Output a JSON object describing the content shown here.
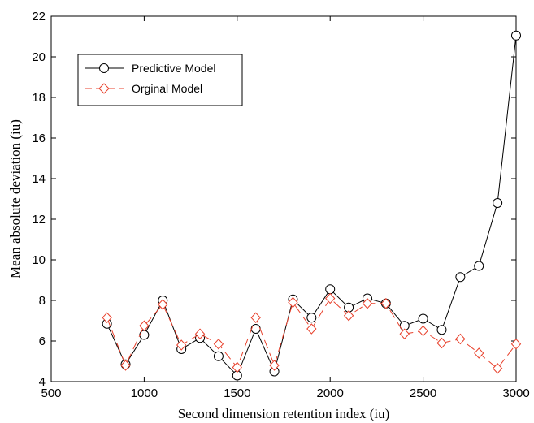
{
  "chart_data": {
    "type": "line",
    "title": "",
    "xlabel": "Second dimension retention index (iu)",
    "ylabel": "Mean absolute deviation (iu)",
    "xlim": [
      500,
      3000
    ],
    "ylim": [
      4,
      22
    ],
    "xticks": [
      500,
      1000,
      1500,
      2000,
      2500,
      3000
    ],
    "yticks": [
      4,
      6,
      8,
      10,
      12,
      14,
      16,
      18,
      20,
      22
    ],
    "grid": false,
    "legend_position": "top-left",
    "series": [
      {
        "name": "Predictive Model",
        "color": "#000000",
        "marker": "circle",
        "line_style": "solid",
        "x": [
          800,
          900,
          1000,
          1100,
          1200,
          1300,
          1400,
          1500,
          1600,
          1700,
          1800,
          1900,
          2000,
          2100,
          2200,
          2300,
          2400,
          2500,
          2600,
          2700,
          2800,
          2900,
          3000
        ],
        "y": [
          6.85,
          4.85,
          6.3,
          8.0,
          5.6,
          6.15,
          5.25,
          4.3,
          6.6,
          4.5,
          8.05,
          7.15,
          8.55,
          7.65,
          8.1,
          7.85,
          6.75,
          7.1,
          6.55,
          9.15,
          9.7,
          12.8,
          21.05
        ]
      },
      {
        "name": "Orginal Model",
        "color": "#e8412c",
        "marker": "diamond",
        "line_style": "dashed",
        "x": [
          800,
          900,
          1000,
          1100,
          1200,
          1300,
          1400,
          1500,
          1600,
          1700,
          1800,
          1900,
          2000,
          2100,
          2200,
          2300,
          2400,
          2500,
          2600,
          2700,
          2800,
          2900,
          3000
        ],
        "y": [
          7.15,
          4.8,
          6.75,
          7.8,
          5.8,
          6.35,
          5.85,
          4.7,
          7.15,
          4.8,
          7.9,
          6.6,
          8.1,
          7.25,
          7.85,
          7.85,
          6.35,
          6.5,
          5.9,
          6.1,
          5.4,
          4.65,
          5.85
        ]
      }
    ]
  }
}
